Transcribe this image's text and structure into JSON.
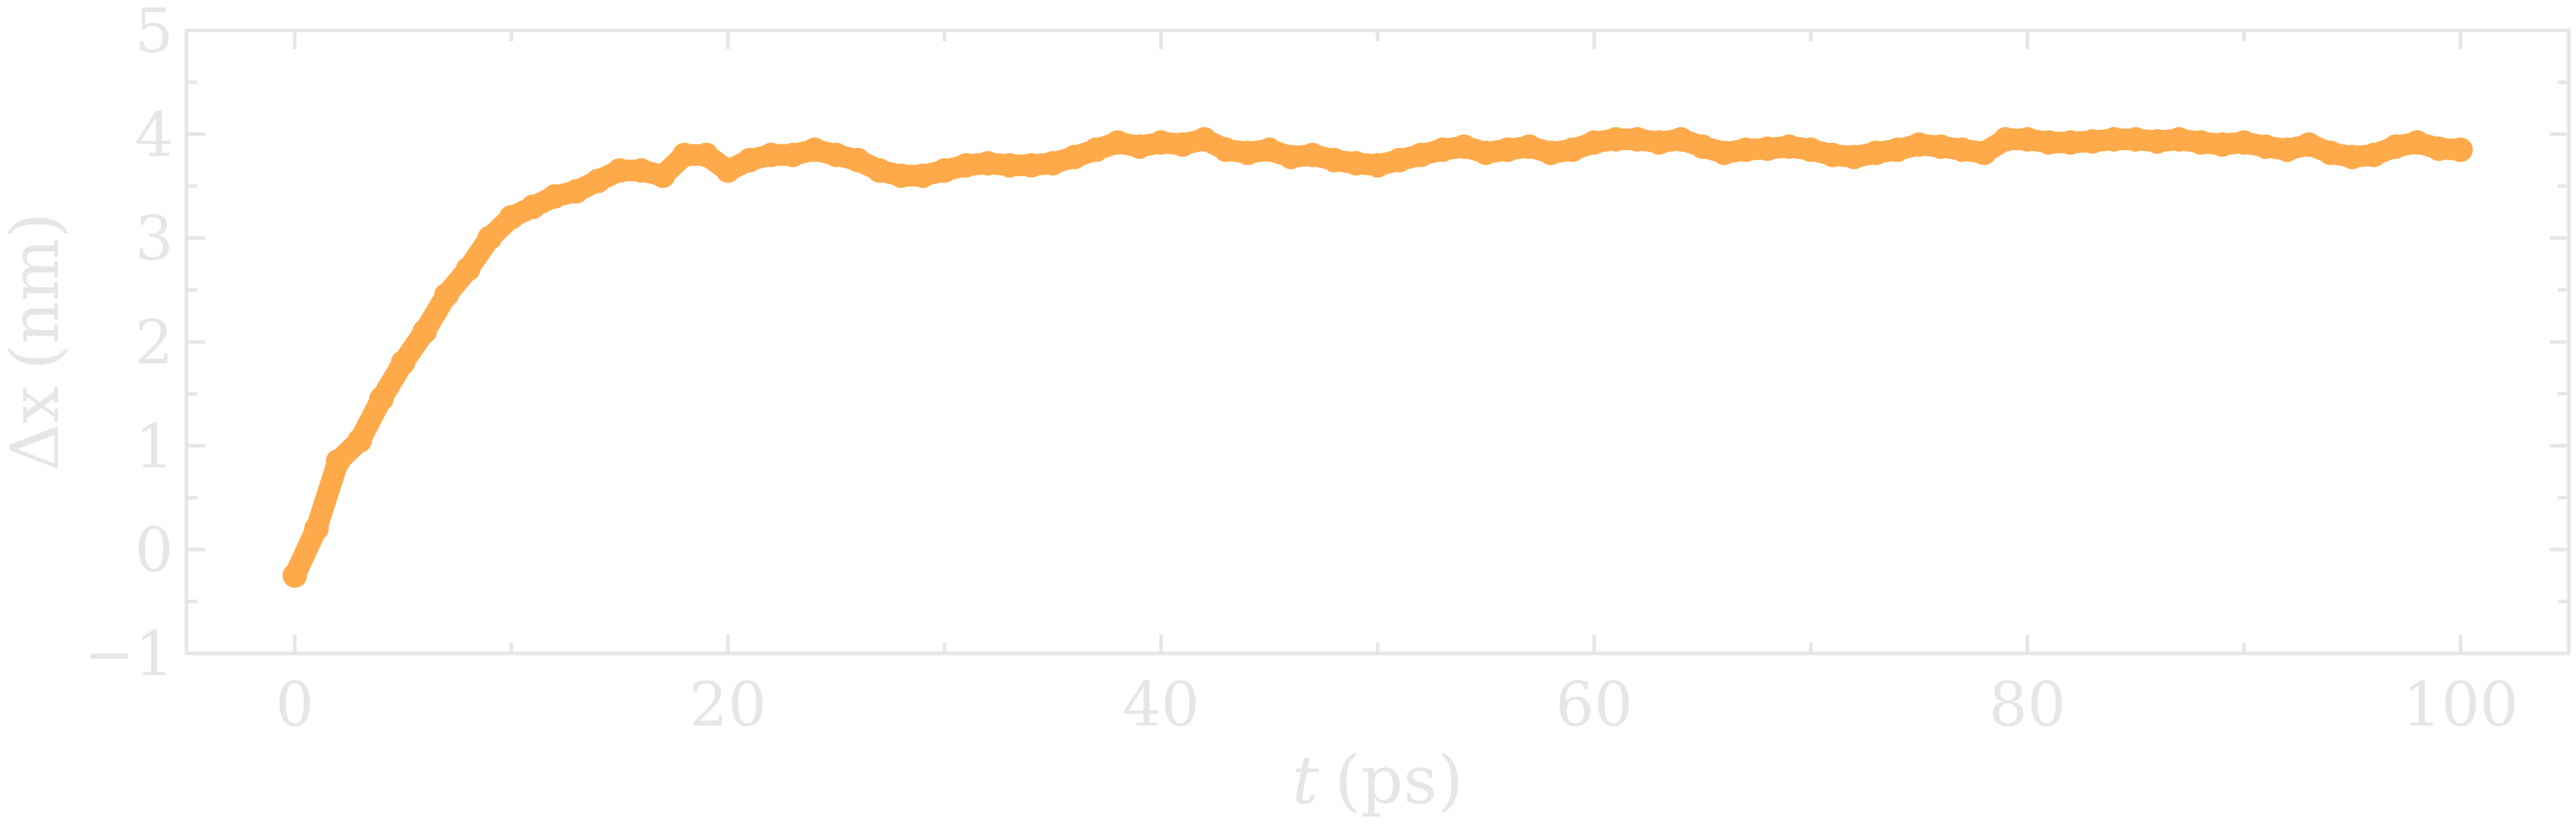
{
  "chart_data": {
    "type": "line",
    "xlabel": {
      "symbol": "t",
      "unit": "(ps)"
    },
    "ylabel": {
      "symbol": "Δx",
      "unit": "(nm)"
    },
    "xlim": [
      -5,
      105
    ],
    "ylim": [
      -1,
      5
    ],
    "x_ticks": [
      0,
      20,
      40,
      60,
      80,
      100
    ],
    "x_tick_labels": [
      "0",
      "20",
      "40",
      "60",
      "80",
      "100"
    ],
    "y_ticks": [
      -1,
      0,
      1,
      2,
      3,
      4,
      5
    ],
    "y_tick_labels": [
      "−1",
      "0",
      "1",
      "2",
      "3",
      "4",
      "5"
    ],
    "grid": false,
    "colors": {
      "series": "#ffaa4a",
      "axis": "#e6e6e6"
    },
    "series": [
      {
        "x": [
          0,
          1,
          2,
          3,
          4,
          5,
          6,
          7,
          8,
          9,
          10,
          11,
          12,
          13,
          14,
          15,
          16,
          17,
          18,
          19,
          20,
          21,
          22,
          23,
          24,
          25,
          26,
          27,
          28,
          29,
          30,
          31,
          32,
          33,
          34,
          35,
          36,
          37,
          38,
          39,
          40,
          41,
          42,
          43,
          44,
          45,
          46,
          47,
          48,
          49,
          50,
          51,
          52,
          53,
          54,
          55,
          56,
          57,
          58,
          59,
          60,
          61,
          62,
          63,
          64,
          65,
          66,
          67,
          68,
          69,
          70,
          71,
          72,
          73,
          74,
          75,
          76,
          77,
          78,
          79,
          80,
          81,
          82,
          83,
          84,
          85,
          86,
          87,
          88,
          89,
          90,
          91,
          92,
          93,
          94,
          95,
          96,
          97,
          98,
          99,
          100
        ],
        "y": [
          -0.25,
          0.2,
          0.85,
          1.05,
          1.45,
          1.8,
          2.1,
          2.45,
          2.7,
          3.0,
          3.2,
          3.3,
          3.4,
          3.45,
          3.55,
          3.65,
          3.65,
          3.6,
          3.8,
          3.8,
          3.65,
          3.75,
          3.8,
          3.8,
          3.85,
          3.8,
          3.75,
          3.65,
          3.6,
          3.6,
          3.65,
          3.7,
          3.72,
          3.7,
          3.7,
          3.72,
          3.78,
          3.85,
          3.92,
          3.88,
          3.92,
          3.9,
          3.95,
          3.85,
          3.82,
          3.85,
          3.78,
          3.8,
          3.75,
          3.72,
          3.7,
          3.75,
          3.8,
          3.85,
          3.88,
          3.82,
          3.85,
          3.88,
          3.82,
          3.85,
          3.92,
          3.95,
          3.95,
          3.92,
          3.95,
          3.88,
          3.82,
          3.85,
          3.86,
          3.88,
          3.85,
          3.8,
          3.78,
          3.82,
          3.85,
          3.9,
          3.88,
          3.85,
          3.82,
          3.95,
          3.95,
          3.92,
          3.92,
          3.93,
          3.95,
          3.95,
          3.93,
          3.95,
          3.92,
          3.9,
          3.92,
          3.88,
          3.85,
          3.9,
          3.82,
          3.78,
          3.8,
          3.88,
          3.92,
          3.86,
          3.85
        ]
      }
    ]
  }
}
